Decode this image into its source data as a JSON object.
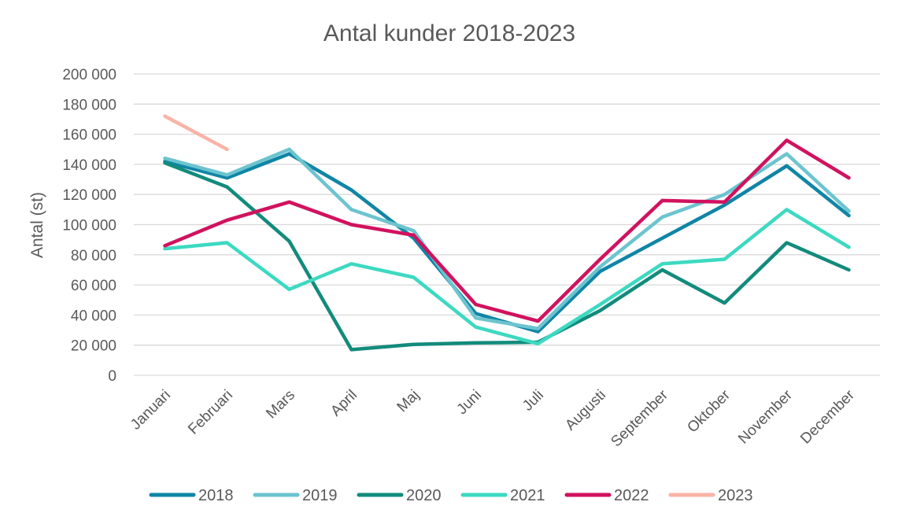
{
  "chart_data": {
    "type": "line",
    "title": "Antal kunder 2018-2023",
    "xlabel": "",
    "ylabel": "Antal (st)",
    "ylim": [
      0,
      200000
    ],
    "yticks": [
      {
        "value": 0,
        "label": "0"
      },
      {
        "value": 20000,
        "label": "20 000"
      },
      {
        "value": 40000,
        "label": "40 000"
      },
      {
        "value": 60000,
        "label": "60 000"
      },
      {
        "value": 80000,
        "label": "80 000"
      },
      {
        "value": 100000,
        "label": "100 000"
      },
      {
        "value": 120000,
        "label": "120 000"
      },
      {
        "value": 140000,
        "label": "140 000"
      },
      {
        "value": 160000,
        "label": "160 000"
      },
      {
        "value": 180000,
        "label": "180 000"
      },
      {
        "value": 200000,
        "label": "200 000"
      }
    ],
    "categories": [
      "Januari",
      "Februari",
      "Mars",
      "April",
      "Maj",
      "Juni",
      "Juli",
      "Augusti",
      "September",
      "Oktober",
      "November",
      "December"
    ],
    "grid": true,
    "legend_position": "bottom",
    "series": [
      {
        "name": "2018",
        "color": "#1085A6",
        "values": [
          142000,
          131000,
          147000,
          123000,
          91000,
          41000,
          29000,
          69000,
          91000,
          113000,
          139000,
          106000
        ]
      },
      {
        "name": "2019",
        "color": "#6CC4CF",
        "values": [
          144000,
          133000,
          150000,
          110000,
          96000,
          38000,
          31000,
          72000,
          105000,
          120000,
          147000,
          109000
        ]
      },
      {
        "name": "2020",
        "color": "#128B7C",
        "values": [
          141000,
          125000,
          89000,
          17000,
          20500,
          21500,
          22000,
          43000,
          70000,
          48000,
          88000,
          70000
        ]
      },
      {
        "name": "2021",
        "color": "#3DD9C1",
        "values": [
          84000,
          88000,
          57000,
          74000,
          65000,
          32000,
          21000,
          47000,
          74000,
          77000,
          110000,
          85000
        ]
      },
      {
        "name": "2022",
        "color": "#D1125F",
        "values": [
          86000,
          103000,
          115000,
          100000,
          93000,
          47000,
          36000,
          77000,
          116000,
          115000,
          156000,
          131000
        ]
      },
      {
        "name": "2023",
        "color": "#F9B3A6",
        "values": [
          172000,
          150000,
          null,
          null,
          null,
          null,
          null,
          null,
          null,
          null,
          null,
          null
        ]
      }
    ]
  }
}
